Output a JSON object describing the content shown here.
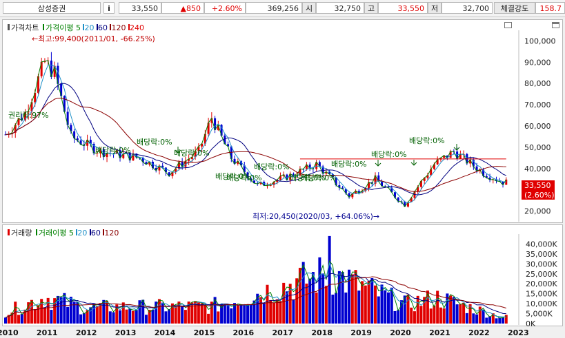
{
  "header": {
    "stock_name": "삼성증권",
    "info_button": "i",
    "price": "33,550",
    "change": "▲850",
    "change_pct": "+2.60%",
    "volume": "369,256",
    "open_label": "시",
    "open_value": "32,750",
    "high_label": "고",
    "high_value": "33,550",
    "low_label": "저",
    "low_value": "32,700",
    "strength_label": "체결강도",
    "strength_value": "158.7"
  },
  "price_panel": {
    "legend": {
      "title": "가격차트",
      "ma_title": "가격이평",
      "ma5": "5",
      "ma20": "20",
      "ma60": "60",
      "ma120": "120",
      "ma240": "240"
    },
    "max_annotation": "←최고:99,400(2011/01, -66.25%)",
    "min_annotation": "최저:20,450(2020/03, +64.06%)→",
    "events": [
      {
        "label": "권리락:97%"
      },
      {
        "label": "배당락:0%"
      },
      {
        "label": "배당락:0%"
      },
      {
        "label": "배당락:0%"
      },
      {
        "label": "배당락:0%"
      },
      {
        "label": "배당락:0%"
      },
      {
        "label": "배당락:0%"
      },
      {
        "label": "배당락:0%"
      },
      {
        "label": "배당락:0%"
      },
      {
        "label": "배당락:0%"
      },
      {
        "label": "배당락:0%"
      },
      {
        "label": "배당락:0%"
      }
    ],
    "y_ticks": [
      "100,000",
      "90,000",
      "80,000",
      "70,000",
      "60,000",
      "50,000",
      "40,000",
      "30,000",
      "20,000"
    ],
    "current_price_tag": "33,550",
    "current_pct_tag": "(2.60%)"
  },
  "volume_panel": {
    "legend": {
      "title": "거래량",
      "ma_title": "거래이평",
      "ma5": "5",
      "ma20": "20",
      "ma60": "60",
      "ma120": "120"
    },
    "y_ticks": [
      "40,000K",
      "35,000K",
      "30,000K",
      "25,000K",
      "20,000K",
      "15,000K",
      "10,000K",
      "5,000K",
      "0K"
    ]
  },
  "x_axis": {
    "labels": [
      "2010",
      "2011",
      "2012",
      "2013",
      "2014",
      "2015",
      "2016",
      "2017",
      "2018",
      "2019",
      "2020",
      "2021",
      "2022",
      "2023"
    ]
  },
  "colors": {
    "up": "#e00000",
    "down": "#0000d0",
    "ma5": "#008000",
    "ma20": "#1e90c8",
    "ma60": "#000080",
    "ma120": "#8b0000",
    "ma240": "#e00000"
  },
  "chart_data": {
    "type": "candlestick",
    "title": "가격차트",
    "period": "monthly",
    "x_range": [
      "2010/01",
      "2022/09"
    ],
    "ylim_price": [
      15000,
      105000
    ],
    "ylim_volume": [
      0,
      45000
    ],
    "volume_unit": "K",
    "series": [
      {
        "name": "가격",
        "points": [
          {
            "x": "2010/01",
            "close": 56000
          },
          {
            "x": "2010/07",
            "close": 66000
          },
          {
            "x": "2011/01",
            "close": 90000
          },
          {
            "x": "2011/04",
            "close": 85000
          },
          {
            "x": "2011/09",
            "close": 55000
          },
          {
            "x": "2012/06",
            "close": 48000
          },
          {
            "x": "2013/06",
            "close": 45000
          },
          {
            "x": "2014/03",
            "close": 38000
          },
          {
            "x": "2014/12",
            "close": 48000
          },
          {
            "x": "2015/04",
            "close": 64000
          },
          {
            "x": "2015/10",
            "close": 45000
          },
          {
            "x": "2016/06",
            "close": 32000
          },
          {
            "x": "2017/03",
            "close": 36000
          },
          {
            "x": "2017/12",
            "close": 42000
          },
          {
            "x": "2018/10",
            "close": 27000
          },
          {
            "x": "2019/06",
            "close": 35000
          },
          {
            "x": "2020/03",
            "close": 23000
          },
          {
            "x": "2020/12",
            "close": 42000
          },
          {
            "x": "2021/06",
            "close": 48000
          },
          {
            "x": "2022/03",
            "close": 38000
          },
          {
            "x": "2022/09",
            "close": 33550
          }
        ]
      },
      {
        "name": "거래량",
        "points": [
          {
            "x": "2010/01",
            "volume": 6000
          },
          {
            "x": "2011/01",
            "volume": 21000
          },
          {
            "x": "2012/01",
            "volume": 11000
          },
          {
            "x": "2015/04",
            "volume": 12000
          },
          {
            "x": "2018/04",
            "volume": 44000
          },
          {
            "x": "2020/03",
            "volume": 14000
          },
          {
            "x": "2021/01",
            "volume": 20000
          },
          {
            "x": "2022/09",
            "volume": 1500
          }
        ]
      }
    ]
  }
}
